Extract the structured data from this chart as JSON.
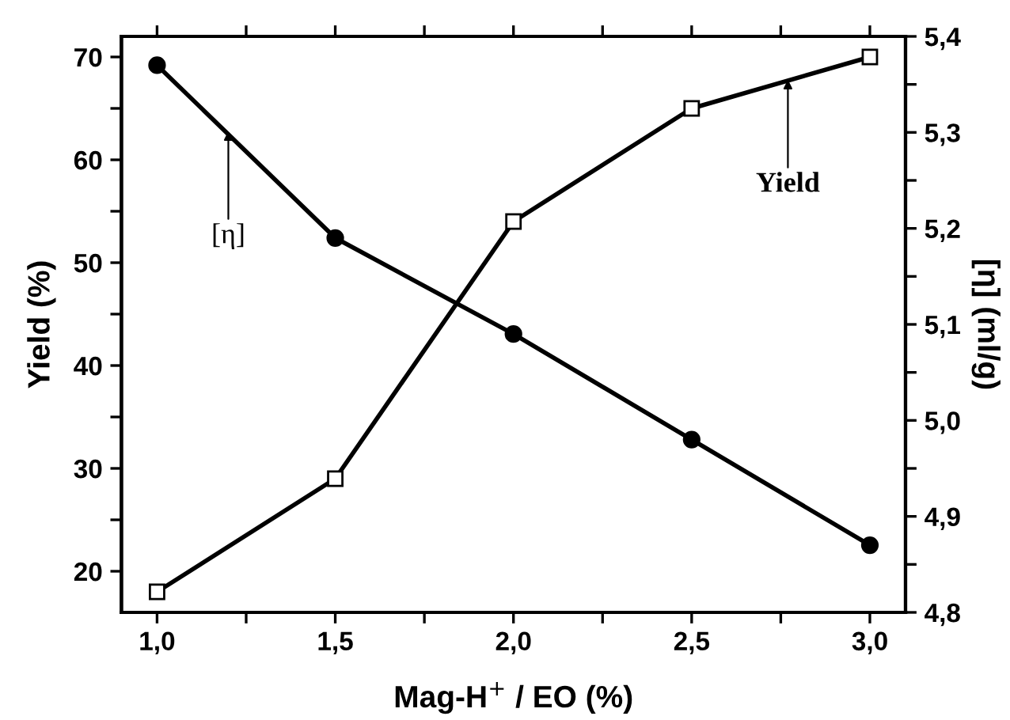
{
  "chart_data": {
    "type": "line",
    "xlabel": "Mag-H$^{+}$ / EO (%)",
    "ylabel": "Yield (%)",
    "y2label": "[η] (ml/g)",
    "x": [
      1.0,
      1.5,
      2.0,
      2.5,
      3.0
    ],
    "series": [
      {
        "color": "#000000",
        "marker": "square",
        "values": [
          18,
          29,
          54,
          65,
          70
        ]
      },
      {
        "color": "#000000",
        "marker": "circle",
        "axis": "y2",
        "values": [
          5.37,
          5.19,
          5.09,
          4.98,
          4.87
        ]
      }
    ],
    "xlim": [
      0.9,
      3.1
    ],
    "xticks": [
      {
        "value": 1.0,
        "label": "1,0"
      },
      {
        "value": 1.25,
        "label": null
      },
      {
        "value": 1.5,
        "label": "1,5"
      },
      {
        "value": 1.75,
        "label": null
      },
      {
        "value": 2.0,
        "label": "2,0"
      },
      {
        "value": 2.25,
        "label": null
      },
      {
        "value": 2.5,
        "label": "2,5"
      },
      {
        "value": 2.75,
        "label": null
      },
      {
        "value": 3.0,
        "label": "3,0"
      }
    ],
    "ylim": [
      16,
      72
    ],
    "yticks": [
      20,
      {
        "value": 25,
        "label": null
      },
      30,
      {
        "value": 35,
        "label": null
      },
      40,
      {
        "value": 45,
        "label": null
      },
      50,
      {
        "value": 55,
        "label": null
      },
      60,
      {
        "value": 65,
        "label": null
      },
      70
    ],
    "y2lim": [
      4.8,
      5.4
    ],
    "y2ticks": [
      {
        "value": 4.8,
        "label": "4,8"
      },
      {
        "value": 4.85,
        "label": null
      },
      {
        "value": 4.9,
        "label": "4,9"
      },
      {
        "value": 4.95,
        "label": null
      },
      {
        "value": 5.0,
        "label": "5,0"
      },
      {
        "value": 5.05,
        "label": null
      },
      {
        "value": 5.1,
        "label": "5,1"
      },
      {
        "value": 5.15,
        "label": null
      },
      {
        "value": 5.2,
        "label": "5,2"
      },
      {
        "value": 5.25,
        "label": null
      },
      {
        "value": 5.3,
        "label": "5,3"
      },
      {
        "value": 5.35,
        "label": null
      },
      {
        "value": 5.4,
        "label": "5,4"
      }
    ],
    "annotations": [
      {
        "text": "[η]",
        "x": 1.2,
        "y": 62.8
      },
      {
        "text": "Yield",
        "x": 2.77,
        "y": 67.8
      }
    ],
    "grid": false,
    "legend": false,
    "line_style": "solid"
  }
}
